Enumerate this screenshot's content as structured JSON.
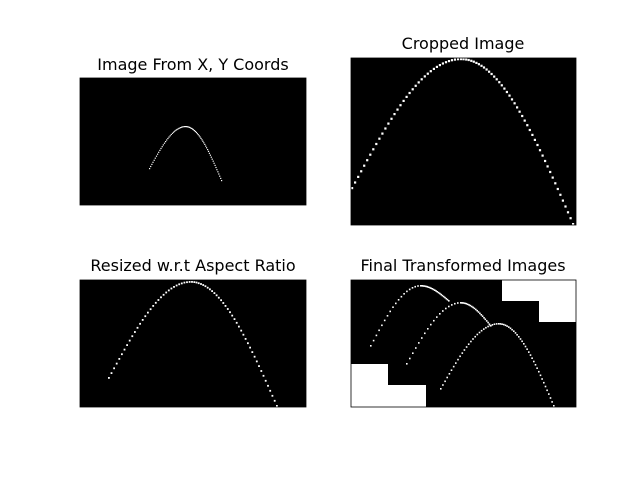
{
  "chart_data": [
    {
      "type": "image",
      "title": "Image From X, Y Coords",
      "background": "#000000",
      "stroke_color": "#ffffff",
      "description_points": "sparse white dotted peak curve centered in frame"
    },
    {
      "type": "image",
      "title": "Cropped Image",
      "background": "#000000",
      "stroke_color": "#ffffff"
    },
    {
      "type": "image",
      "title": "Resized w.r.t Aspect Ratio",
      "background": "#000000",
      "stroke_color": "#ffffff"
    },
    {
      "type": "image",
      "title": "Final Transformed Images",
      "background": "#000000",
      "stroke_color": "#ffffff",
      "fill_blocks_color": "#ffffff"
    }
  ]
}
